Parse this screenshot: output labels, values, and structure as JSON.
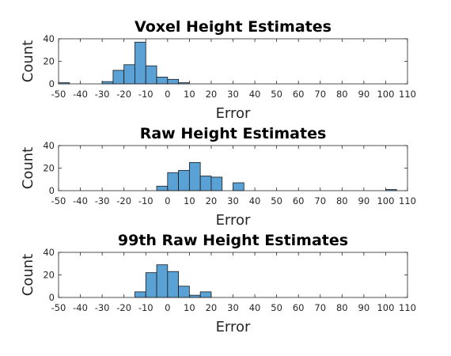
{
  "chart_data": [
    {
      "type": "bar",
      "title": "Voxel Height Estimates",
      "xlabel": "Error",
      "ylabel": "Count",
      "xlim": [
        -50,
        110
      ],
      "ylim": [
        0,
        40
      ],
      "bin_width": 5,
      "xticks": [
        "-50",
        "-40",
        "-30",
        "-20",
        "-10",
        "0",
        "10",
        "20",
        "30",
        "40",
        "50",
        "60",
        "70",
        "80",
        "90",
        "100",
        "110"
      ],
      "yticks": [
        "0",
        "20",
        "40"
      ],
      "grid": false,
      "bins": [
        {
          "start": -50,
          "count": 1
        },
        {
          "start": -30,
          "count": 2
        },
        {
          "start": -25,
          "count": 12
        },
        {
          "start": -20,
          "count": 17
        },
        {
          "start": -15,
          "count": 37
        },
        {
          "start": -10,
          "count": 16
        },
        {
          "start": -5,
          "count": 6
        },
        {
          "start": 0,
          "count": 4
        },
        {
          "start": 5,
          "count": 1
        }
      ]
    },
    {
      "type": "bar",
      "title": "Raw Height Estimates",
      "xlabel": "Error",
      "ylabel": "Count",
      "xlim": [
        -50,
        110
      ],
      "ylim": [
        0,
        40
      ],
      "bin_width": 5,
      "xticks": [
        "-50",
        "-40",
        "-30",
        "-20",
        "-10",
        "0",
        "10",
        "20",
        "30",
        "40",
        "50",
        "60",
        "70",
        "80",
        "90",
        "100",
        "110"
      ],
      "yticks": [
        "0",
        "20",
        "40"
      ],
      "grid": false,
      "bins": [
        {
          "start": -5,
          "count": 4
        },
        {
          "start": 0,
          "count": 16
        },
        {
          "start": 5,
          "count": 18
        },
        {
          "start": 10,
          "count": 25
        },
        {
          "start": 15,
          "count": 13
        },
        {
          "start": 20,
          "count": 12
        },
        {
          "start": 30,
          "count": 7
        },
        {
          "start": 100,
          "count": 1
        }
      ]
    },
    {
      "type": "bar",
      "title": "99th Raw Height Estimates",
      "xlabel": "Error",
      "ylabel": "Count",
      "xlim": [
        -50,
        110
      ],
      "ylim": [
        0,
        40
      ],
      "bin_width": 5,
      "xticks": [
        "-50",
        "-40",
        "-30",
        "-20",
        "-10",
        "0",
        "10",
        "20",
        "30",
        "40",
        "50",
        "60",
        "70",
        "80",
        "90",
        "100",
        "110"
      ],
      "yticks": [
        "0",
        "20",
        "40"
      ],
      "grid": false,
      "bins": [
        {
          "start": -15,
          "count": 5
        },
        {
          "start": -10,
          "count": 22
        },
        {
          "start": -5,
          "count": 29
        },
        {
          "start": 0,
          "count": 23
        },
        {
          "start": 5,
          "count": 10
        },
        {
          "start": 10,
          "count": 2
        },
        {
          "start": 15,
          "count": 5
        }
      ]
    }
  ],
  "colors": {
    "bar_fill": "#5aa1d6",
    "bar_edge": "#1a1a1a",
    "axis": "#262626"
  }
}
